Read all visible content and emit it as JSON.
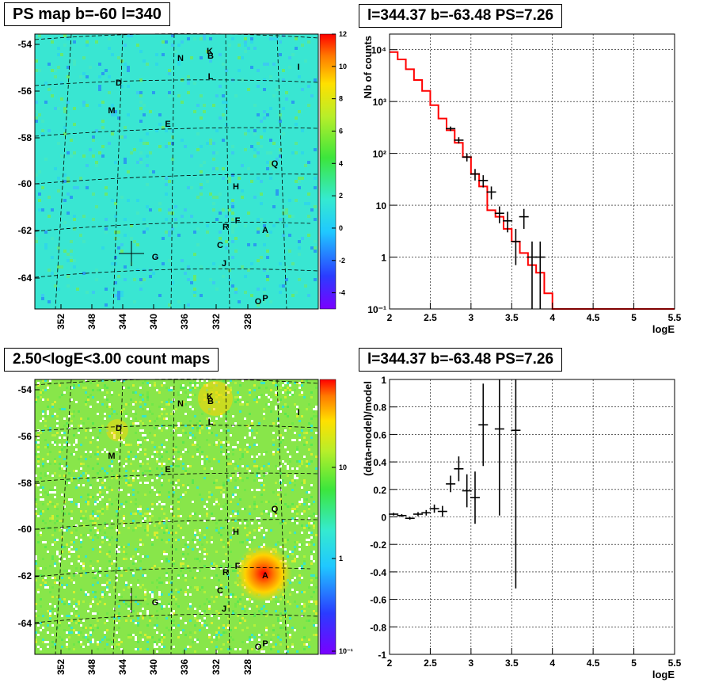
{
  "titles": {
    "ps_map": "PS map b=-60 l=340",
    "spectrum": "l=344.37 b=-63.48 PS=7.26",
    "count_map": "2.50<logE<3.00 count maps",
    "residual": "l=344.37 b=-63.48 PS=7.26"
  },
  "colors": {
    "model_line": "#ff0000",
    "data_points": "#000000",
    "ps_map_background": "#39e6d2",
    "count_map_background": "#88e64a",
    "hotspot": "#ff2a00"
  },
  "maps": {
    "lat_ticks": [
      "-54",
      "-56",
      "-58",
      "-60",
      "-62",
      "-64"
    ],
    "lon_ticks": [
      "352",
      "348",
      "344",
      "340",
      "336",
      "332",
      "328"
    ],
    "source_labels": [
      "N",
      "K",
      "B",
      "I",
      "L",
      "D",
      "M",
      "E",
      "Q",
      "H",
      "F",
      "R",
      "A",
      "C",
      "G",
      "J",
      "O",
      "P"
    ],
    "ps_map_colorbar": {
      "ticks": [
        "12",
        "10",
        "8",
        "6",
        "4",
        "2",
        "0",
        "-2",
        "-4"
      ],
      "range": [
        -5,
        12
      ]
    },
    "count_map_colorbar": {
      "ticks": [
        "10",
        "1",
        "10⁻¹"
      ],
      "scale": "log"
    }
  },
  "chart_data": [
    {
      "type": "line",
      "panel": "spectrum",
      "title": "l=344.37 b=-63.48 PS=7.26",
      "xlabel": "logE",
      "ylabel": "Nb of counts",
      "xlim": [
        2,
        5.5
      ],
      "ylim": [
        0.1,
        20000
      ],
      "yscale": "log",
      "grid": true,
      "x_ticks": [
        "2",
        "2.5",
        "3",
        "3.5",
        "4",
        "4.5",
        "5",
        "5.5"
      ],
      "y_ticks": [
        "10⁻¹",
        "1",
        "10",
        "10²",
        "10³",
        "10⁴"
      ],
      "model_bins": {
        "edges": [
          2.0,
          2.1,
          2.2,
          2.3,
          2.4,
          2.5,
          2.6,
          2.7,
          2.8,
          2.9,
          3.0,
          3.1,
          3.2,
          3.3,
          3.4,
          3.5,
          3.6,
          3.7,
          3.8,
          3.9,
          4.0,
          5.5
        ],
        "values": [
          9000,
          6500,
          4200,
          2600,
          1600,
          850,
          470,
          280,
          160,
          85,
          40,
          23,
          8,
          6,
          3.5,
          2,
          1.2,
          0.7,
          0.5,
          0.2,
          0.1
        ]
      },
      "data_points": [
        {
          "x": 2.75,
          "y": 300,
          "lo": 270,
          "hi": 330
        },
        {
          "x": 2.85,
          "y": 180,
          "lo": 155,
          "hi": 205
        },
        {
          "x": 2.95,
          "y": 85,
          "lo": 70,
          "hi": 100
        },
        {
          "x": 3.05,
          "y": 40,
          "lo": 30,
          "hi": 50
        },
        {
          "x": 3.15,
          "y": 30,
          "lo": 22,
          "hi": 38
        },
        {
          "x": 3.25,
          "y": 18,
          "lo": 13,
          "hi": 23
        },
        {
          "x": 3.35,
          "y": 7,
          "lo": 4.5,
          "hi": 9.5
        },
        {
          "x": 3.45,
          "y": 5,
          "lo": 3,
          "hi": 7.5
        },
        {
          "x": 3.55,
          "y": 2,
          "lo": 0.7,
          "hi": 3.5
        },
        {
          "x": 3.65,
          "y": 6,
          "lo": 3.5,
          "hi": 8.5
        },
        {
          "x": 3.75,
          "y": 1,
          "lo": 0.1,
          "hi": 2
        },
        {
          "x": 3.85,
          "y": 1,
          "lo": 0.1,
          "hi": 2
        }
      ]
    },
    {
      "type": "scatter",
      "panel": "residual",
      "title": "l=344.37 b=-63.48 PS=7.26",
      "xlabel": "logE",
      "ylabel": "(data-model)/model",
      "xlim": [
        2,
        5.5
      ],
      "ylim": [
        -1,
        1
      ],
      "grid": true,
      "x_ticks": [
        "2",
        "2.5",
        "3",
        "3.5",
        "4",
        "4.5",
        "5",
        "5.5"
      ],
      "y_ticks": [
        "-1",
        "-0.8",
        "-0.6",
        "-0.4",
        "-0.2",
        "0",
        "0.2",
        "0.4",
        "0.6",
        "0.8",
        "1"
      ],
      "points": [
        {
          "x": 2.05,
          "y": 0.02,
          "err": 0.01
        },
        {
          "x": 2.15,
          "y": 0.01,
          "err": 0.01
        },
        {
          "x": 2.25,
          "y": -0.01,
          "err": 0.01
        },
        {
          "x": 2.35,
          "y": 0.02,
          "err": 0.015
        },
        {
          "x": 2.45,
          "y": 0.03,
          "err": 0.02
        },
        {
          "x": 2.55,
          "y": 0.06,
          "err": 0.03
        },
        {
          "x": 2.65,
          "y": 0.04,
          "err": 0.04
        },
        {
          "x": 2.75,
          "y": 0.24,
          "err": 0.06
        },
        {
          "x": 2.85,
          "y": 0.35,
          "err": 0.09
        },
        {
          "x": 2.95,
          "y": 0.19,
          "err": 0.12
        },
        {
          "x": 3.05,
          "y": 0.14,
          "err": 0.19
        },
        {
          "x": 3.15,
          "y": 0.67,
          "err": 0.3
        },
        {
          "x": 3.35,
          "y": 0.64,
          "err": 0.63
        },
        {
          "x": 3.55,
          "y": 0.63,
          "err": 1.15
        }
      ]
    }
  ]
}
